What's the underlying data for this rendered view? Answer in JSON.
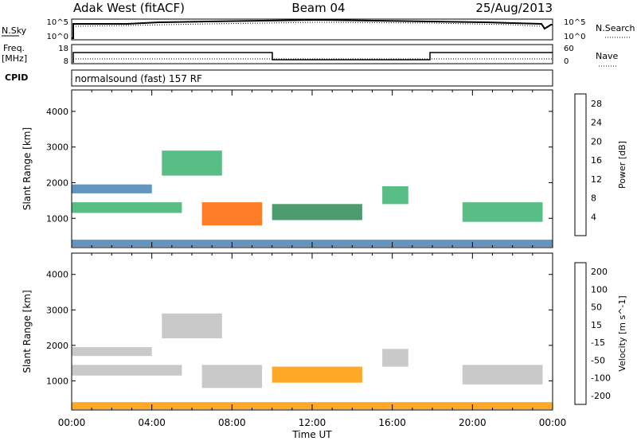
{
  "header": {
    "station": "Adak West (fitACF)",
    "beam": "Beam 04",
    "date": "25/Aug/2013"
  },
  "top_panel": {
    "left_label": "N.Sky",
    "right_label": "N.Search",
    "left_ticks": [
      "10^5",
      "10^0"
    ],
    "right_ticks": [
      "10^5",
      "10^0"
    ]
  },
  "freq_panel": {
    "left_label": "Freq.",
    "left_unit": "[MHz]",
    "right_label": "Nave",
    "left_ticks": [
      "18",
      "8"
    ],
    "right_ticks": [
      "60",
      "0"
    ]
  },
  "cpid_panel": {
    "label": "CPID",
    "mode": "normalsound (fast) 157 RF"
  },
  "colors": {
    "power": [
      "#1e1ec8",
      "#1e50b4",
      "#4682b4",
      "#2e8b57",
      "#3cb371",
      "#9acd32",
      "#ffa500",
      "#ff6600",
      "#ff3300",
      "#ff0000"
    ],
    "velocity": [
      "#ff0000",
      "#ff3300",
      "#ff6600",
      "#ff9900",
      "#c0c0c0",
      "#66cc33",
      "#339966",
      "#3366cc",
      "#2020c0"
    ]
  },
  "chart_data": [
    {
      "type": "heatmap",
      "title": "",
      "xlabel": "Time UT",
      "ylabel": "Slant Range [km]",
      "x_ticks": [
        "00:00",
        "04:00",
        "08:00",
        "12:00",
        "16:00",
        "20:00",
        "00:00"
      ],
      "xlim_hours": [
        0,
        24
      ],
      "y_ticks": [
        1000,
        2000,
        3000,
        4000
      ],
      "ylim": [
        180,
        4600
      ],
      "colorbar": {
        "label": "Power [dB]",
        "ticks": [
          4,
          8,
          12,
          16,
          20,
          24,
          28
        ],
        "range": [
          0,
          30
        ]
      },
      "regions": [
        {
          "t": [
            0.0,
            4.0
          ],
          "r": [
            1700,
            1950
          ],
          "value": 8
        },
        {
          "t": [
            0.0,
            5.5
          ],
          "r": [
            1150,
            1450
          ],
          "value": 14
        },
        {
          "t": [
            4.5,
            7.5
          ],
          "r": [
            2200,
            2900
          ],
          "value": 12
        },
        {
          "t": [
            6.5,
            9.5
          ],
          "r": [
            800,
            1450
          ],
          "value": 22
        },
        {
          "t": [
            10.0,
            14.5
          ],
          "r": [
            950,
            1400
          ],
          "value": 10
        },
        {
          "t": [
            15.5,
            16.8
          ],
          "r": [
            1400,
            1900
          ],
          "value": 12
        },
        {
          "t": [
            19.5,
            23.5
          ],
          "r": [
            900,
            1450
          ],
          "value": 14
        },
        {
          "t": [
            0.0,
            24.0
          ],
          "r": [
            200,
            400
          ],
          "value": 6
        }
      ]
    },
    {
      "type": "heatmap",
      "title": "",
      "xlabel": "Time UT",
      "ylabel": "Slant Range [km]",
      "x_ticks": [
        "00:00",
        "04:00",
        "08:00",
        "12:00",
        "16:00",
        "20:00",
        "00:00"
      ],
      "xlim_hours": [
        0,
        24
      ],
      "y_ticks": [
        1000,
        2000,
        3000,
        4000
      ],
      "ylim": [
        180,
        4600
      ],
      "colorbar": {
        "label": "Velocity [m s^-1]",
        "ticks": [
          200,
          100,
          50,
          15,
          -15,
          -50,
          -100,
          -200
        ],
        "range": [
          -250,
          250
        ]
      },
      "regions": [
        {
          "t": [
            0.0,
            4.0
          ],
          "r": [
            1700,
            1950
          ],
          "value": 0
        },
        {
          "t": [
            0.0,
            5.5
          ],
          "r": [
            1150,
            1450
          ],
          "value": 0
        },
        {
          "t": [
            4.5,
            7.5
          ],
          "r": [
            2200,
            2900
          ],
          "value": 0
        },
        {
          "t": [
            6.5,
            9.5
          ],
          "r": [
            800,
            1450
          ],
          "value": 0
        },
        {
          "t": [
            10.0,
            14.5
          ],
          "r": [
            950,
            1400
          ],
          "value": -60
        },
        {
          "t": [
            15.5,
            16.8
          ],
          "r": [
            1400,
            1900
          ],
          "value": 0
        },
        {
          "t": [
            19.5,
            23.5
          ],
          "r": [
            900,
            1450
          ],
          "value": 0
        },
        {
          "t": [
            0.0,
            24.0
          ],
          "r": [
            200,
            400
          ],
          "value": -40
        }
      ]
    }
  ]
}
